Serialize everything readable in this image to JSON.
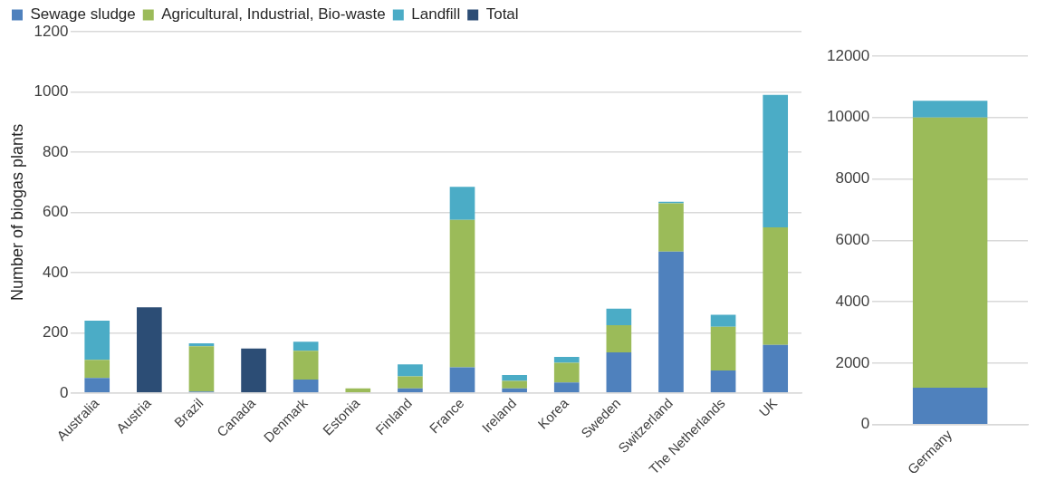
{
  "chart_data": [
    {
      "type": "bar",
      "stacked": true,
      "ylabel": "Number of biogas plants",
      "categories": [
        "Australia",
        "Austria",
        "Brazil",
        "Canada",
        "Denmark",
        "Estonia",
        "Finland",
        "France",
        "Ireland",
        "Korea",
        "Sweden",
        "Switzerland",
        "The Netherlands",
        "UK"
      ],
      "series": [
        {
          "name": "Sewage sludge",
          "color": "#4f81bd",
          "values": [
            50,
            null,
            5,
            null,
            45,
            0,
            15,
            85,
            15,
            35,
            135,
            470,
            75,
            160
          ]
        },
        {
          "name": "Agricultural, Industrial, Bio-waste",
          "color": "#9bbb59",
          "values": [
            60,
            null,
            150,
            null,
            95,
            15,
            40,
            490,
            25,
            65,
            90,
            160,
            145,
            390
          ]
        },
        {
          "name": "Landfill",
          "color": "#4bacc6",
          "values": [
            130,
            null,
            10,
            null,
            30,
            0,
            40,
            110,
            20,
            20,
            55,
            5,
            40,
            440
          ]
        },
        {
          "name": "Total",
          "color": "#2c4d75",
          "values": [
            null,
            285,
            null,
            148,
            null,
            null,
            null,
            null,
            null,
            null,
            null,
            null,
            null,
            null
          ]
        }
      ],
      "ylim": [
        0,
        1200
      ],
      "yticks": [
        0,
        200,
        400,
        600,
        800,
        1000,
        1200
      ],
      "grid": "y",
      "legend": "top"
    },
    {
      "type": "bar",
      "stacked": true,
      "categories": [
        "Germany"
      ],
      "series": [
        {
          "color": "#4f81bd",
          "values": [
            1200
          ]
        },
        {
          "color": "#9bbb59",
          "values": [
            8800
          ]
        },
        {
          "color": "#4bacc6",
          "values": [
            550
          ]
        }
      ],
      "ylim": [
        0,
        12000
      ],
      "yticks": [
        0,
        2000,
        4000,
        6000,
        8000,
        10000,
        12000
      ],
      "grid": "y"
    }
  ]
}
